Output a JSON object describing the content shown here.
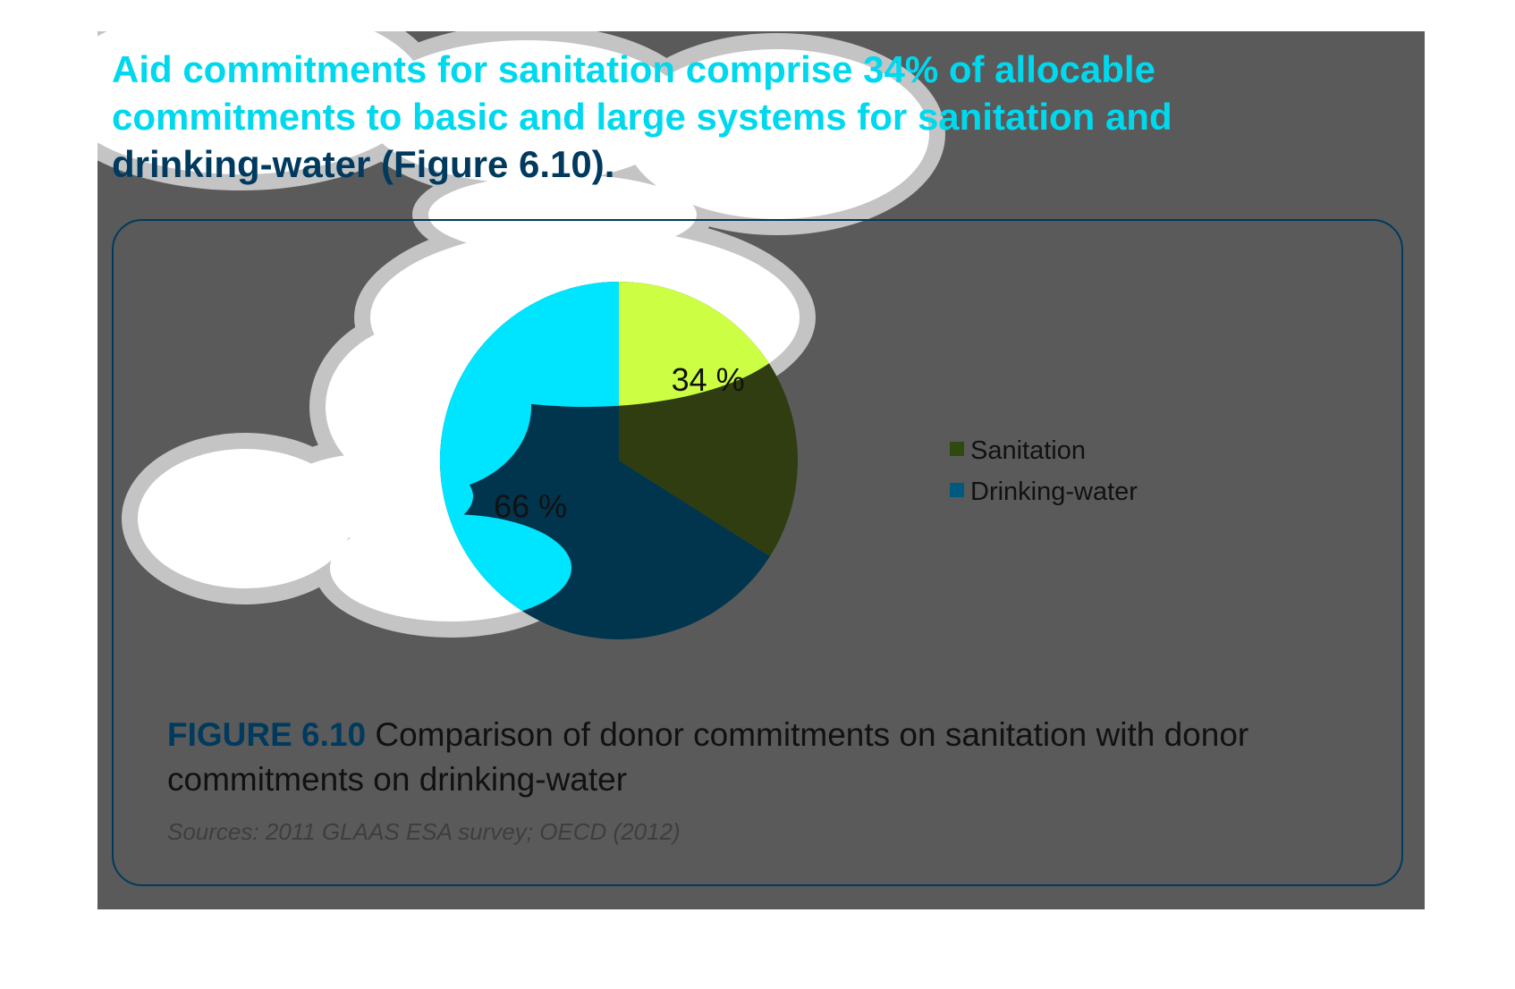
{
  "heading": {
    "line1": "Aid commitments for sanitation comprise 34% of allocable",
    "line2": "commitments to basic and large systems for sanitation and",
    "line3": "drinking-water (Figure 6.10)."
  },
  "chart_data": {
    "type": "pie",
    "slices": [
      {
        "label": "Sanitation",
        "value": 34,
        "data_label": "34 %",
        "color": "#2f3d10"
      },
      {
        "label": "Drinking-water",
        "value": 66,
        "data_label": "66 %",
        "color": "#00354d"
      }
    ],
    "legend": {
      "position": "right",
      "entries": [
        "Sanitation",
        "Drinking-water"
      ]
    }
  },
  "caption": {
    "figure_number": "FIGURE 6.10",
    "text": " Comparison of donor commitments on sanitation with donor commitments on drinking-water"
  },
  "source": "Sources: 2011 GLAAS ESA survey; OECD (2012)",
  "colors": {
    "panel_background": "#5a5a5a",
    "accent_cyan": "#00d8ee",
    "accent_dark_blue": "#003a5e",
    "highlight_lime": "#ccff44",
    "blob_fill": "#ffffff",
    "blob_outline": "#c4c4c4"
  }
}
